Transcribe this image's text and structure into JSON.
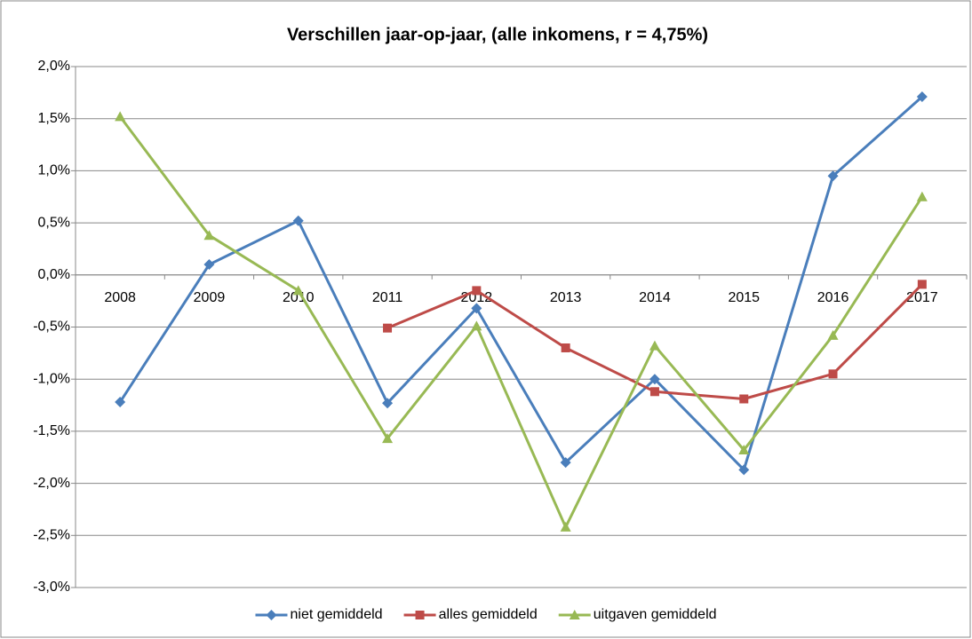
{
  "chart_data": {
    "type": "line",
    "title": "Verschillen jaar-op-jaar, (alle inkomens, r = 4,75%)",
    "categories": [
      "2008",
      "2009",
      "2010",
      "2011",
      "2012",
      "2013",
      "2014",
      "2015",
      "2016",
      "2017"
    ],
    "series": [
      {
        "name": "niet gemiddeld",
        "color": "#4a7ebb",
        "marker": "diamond",
        "values": [
          -1.22,
          0.1,
          0.52,
          -1.23,
          -0.32,
          -1.8,
          -1.0,
          -1.87,
          0.95,
          1.71
        ]
      },
      {
        "name": "alles gemiddeld",
        "color": "#be4b48",
        "marker": "square",
        "values": [
          null,
          null,
          null,
          -0.51,
          -0.15,
          -0.7,
          -1.12,
          -1.19,
          -0.95,
          -0.09
        ]
      },
      {
        "name": "uitgaven gemiddeld",
        "color": "#98b954",
        "marker": "triangle",
        "values": [
          1.52,
          0.38,
          -0.15,
          -1.57,
          -0.49,
          -2.42,
          -0.68,
          -1.68,
          -0.58,
          0.75
        ]
      }
    ],
    "ylim": [
      -3.0,
      2.0
    ],
    "yticks": [
      {
        "value": -3.0,
        "label": "-3,0%"
      },
      {
        "value": -2.5,
        "label": "-2,5%"
      },
      {
        "value": -2.0,
        "label": "-2,0%"
      },
      {
        "value": -1.5,
        "label": "-1,5%"
      },
      {
        "value": -1.0,
        "label": "-1,0%"
      },
      {
        "value": -0.5,
        "label": "-0,5%"
      },
      {
        "value": 0.0,
        "label": "0,0%"
      },
      {
        "value": 0.5,
        "label": "0,5%"
      },
      {
        "value": 1.0,
        "label": "1,0%"
      },
      {
        "value": 1.5,
        "label": "1,5%"
      },
      {
        "value": 2.0,
        "label": "2,0%"
      }
    ],
    "grid": true,
    "legend": "bottom"
  }
}
